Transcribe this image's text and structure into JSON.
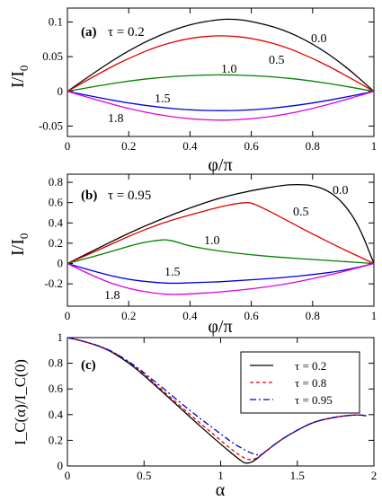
{
  "chart_data": [
    {
      "type": "line",
      "panel_label": "(a)",
      "tau_text": "τ = 0.2",
      "ylabel_main": "I/I",
      "ylabel_sub": "0",
      "xlabel": "φ/π",
      "xlim": [
        0,
        1
      ],
      "ylim": [
        -0.065,
        0.12
      ],
      "xticks": [
        0,
        0.2,
        0.4,
        0.6,
        0.8,
        1
      ],
      "xtick_labels": [
        "0",
        "0.2",
        "0.4",
        "0.6",
        "0.8",
        "1"
      ],
      "yticks": [
        -0.05,
        0,
        0.05,
        0.1
      ],
      "ytick_labels": [
        "-0.05",
        "0",
        "0.05",
        "0.1"
      ],
      "series": [
        {
          "label": "0.0",
          "color": "#000000",
          "x": [
            0,
            0.1,
            0.2,
            0.3,
            0.4,
            0.5,
            0.55,
            0.6,
            0.7,
            0.8,
            0.9,
            1
          ],
          "y": [
            0,
            0.031,
            0.059,
            0.081,
            0.097,
            0.104,
            0.104,
            0.101,
            0.09,
            0.069,
            0.039,
            0
          ]
        },
        {
          "label": "0.5",
          "color": "#e00000",
          "x": [
            0,
            0.1,
            0.2,
            0.3,
            0.4,
            0.5,
            0.6,
            0.7,
            0.8,
            0.9,
            1
          ],
          "y": [
            0,
            0.025,
            0.048,
            0.066,
            0.077,
            0.081,
            0.077,
            0.066,
            0.048,
            0.025,
            0
          ]
        },
        {
          "label": "1.0",
          "color": "#008000",
          "x": [
            0,
            0.1,
            0.2,
            0.3,
            0.4,
            0.5,
            0.6,
            0.7,
            0.8,
            0.9,
            1
          ],
          "y": [
            0,
            0.008,
            0.015,
            0.02,
            0.023,
            0.024,
            0.023,
            0.02,
            0.015,
            0.008,
            0
          ]
        },
        {
          "label": "1.5",
          "color": "#0000e0",
          "x": [
            0,
            0.1,
            0.2,
            0.3,
            0.4,
            0.5,
            0.6,
            0.7,
            0.8,
            0.9,
            1
          ],
          "y": [
            0,
            -0.009,
            -0.017,
            -0.023,
            -0.027,
            -0.028,
            -0.027,
            -0.023,
            -0.017,
            -0.009,
            0
          ]
        },
        {
          "label": "1.8",
          "color": "#e000e0",
          "x": [
            0,
            0.1,
            0.2,
            0.3,
            0.4,
            0.5,
            0.6,
            0.7,
            0.8,
            0.9,
            1
          ],
          "y": [
            0,
            -0.013,
            -0.025,
            -0.034,
            -0.04,
            -0.042,
            -0.04,
            -0.034,
            -0.025,
            -0.013,
            0
          ]
        }
      ]
    },
    {
      "type": "line",
      "panel_label": "(b)",
      "tau_text": "τ = 0.95",
      "ylabel_main": "I/I",
      "ylabel_sub": "0",
      "xlabel": "φ/π",
      "xlim": [
        0,
        1
      ],
      "ylim": [
        -0.42,
        0.88
      ],
      "xticks": [
        0,
        0.2,
        0.4,
        0.6,
        0.8,
        1
      ],
      "xtick_labels": [
        "0",
        "0.2",
        "0.4",
        "0.6",
        "0.8",
        "1"
      ],
      "yticks": [
        -0.2,
        0,
        0.2,
        0.4,
        0.6,
        0.8
      ],
      "ytick_labels": [
        "-0.2",
        "0",
        "0.2",
        "0.4",
        "0.6",
        "0.8"
      ],
      "series": [
        {
          "label": "0.0",
          "color": "#000000",
          "x": [
            0,
            0.1,
            0.2,
            0.3,
            0.4,
            0.5,
            0.6,
            0.7,
            0.75,
            0.8,
            0.85,
            0.9,
            0.95,
            1
          ],
          "y": [
            0,
            0.15,
            0.3,
            0.43,
            0.55,
            0.65,
            0.72,
            0.77,
            0.78,
            0.77,
            0.72,
            0.6,
            0.38,
            0
          ]
        },
        {
          "label": "0.5",
          "color": "#e00000",
          "x": [
            0,
            0.1,
            0.2,
            0.3,
            0.4,
            0.5,
            0.55,
            0.58,
            0.6,
            0.65,
            0.7,
            0.8,
            0.9,
            1
          ],
          "y": [
            0,
            0.13,
            0.27,
            0.39,
            0.48,
            0.56,
            0.59,
            0.6,
            0.6,
            0.53,
            0.45,
            0.29,
            0.14,
            0
          ]
        },
        {
          "label": "1.0",
          "color": "#008000",
          "x": [
            0,
            0.1,
            0.2,
            0.25,
            0.3,
            0.32,
            0.35,
            0.4,
            0.5,
            0.6,
            0.7,
            0.8,
            0.9,
            1
          ],
          "y": [
            0,
            0.08,
            0.17,
            0.21,
            0.23,
            0.235,
            0.22,
            0.17,
            0.12,
            0.085,
            0.06,
            0.04,
            0.02,
            0
          ]
        },
        {
          "label": "1.5",
          "color": "#0000e0",
          "x": [
            0,
            0.1,
            0.2,
            0.3,
            0.35,
            0.4,
            0.5,
            0.6,
            0.7,
            0.8,
            0.9,
            1
          ],
          "y": [
            0,
            -0.09,
            -0.16,
            -0.19,
            -0.195,
            -0.19,
            -0.18,
            -0.16,
            -0.14,
            -0.11,
            -0.07,
            0
          ]
        },
        {
          "label": "1.8",
          "color": "#e000e0",
          "x": [
            0,
            0.1,
            0.2,
            0.3,
            0.35,
            0.4,
            0.5,
            0.6,
            0.7,
            0.8,
            0.9,
            1
          ],
          "y": [
            0,
            -0.15,
            -0.25,
            -0.3,
            -0.305,
            -0.3,
            -0.28,
            -0.25,
            -0.21,
            -0.15,
            -0.08,
            0
          ]
        }
      ]
    },
    {
      "type": "line",
      "panel_label": "(c)",
      "ylabel_text": "I_C(α)/I_C(0)",
      "xlabel": "α",
      "xlim": [
        0,
        2
      ],
      "ylim": [
        0,
        1
      ],
      "xticks": [
        0,
        0.5,
        1,
        1.5,
        2
      ],
      "xtick_labels": [
        "0",
        "0.5",
        "1",
        "1.5",
        "2"
      ],
      "yticks": [
        0,
        0.2,
        0.4,
        0.6,
        0.8,
        1
      ],
      "ytick_labels": [
        "0",
        "0.2",
        "0.4",
        "0.6",
        "0.8",
        "1"
      ],
      "legend_position": "top-right",
      "series": [
        {
          "name": "τ = 0.2",
          "color": "#000000",
          "dash": "",
          "x": [
            0,
            0.2,
            0.4,
            0.6,
            0.8,
            1.0,
            1.1,
            1.18,
            1.3,
            1.4,
            1.5,
            1.6,
            1.7,
            1.8,
            1.9,
            1.95
          ],
          "y": [
            1,
            0.95,
            0.81,
            0.6,
            0.38,
            0.17,
            0.07,
            0.0,
            0.12,
            0.21,
            0.28,
            0.34,
            0.37,
            0.39,
            0.4,
            0.39
          ]
        },
        {
          "name": "τ = 0.8",
          "color": "#e00000",
          "dash": "4,3",
          "x": [
            0,
            0.2,
            0.4,
            0.6,
            0.8,
            1.0,
            1.1,
            1.2,
            1.3,
            1.4,
            1.5,
            1.6,
            1.7,
            1.8,
            1.9,
            1.95
          ],
          "y": [
            1,
            0.95,
            0.82,
            0.61,
            0.4,
            0.2,
            0.1,
            0.03,
            0.12,
            0.21,
            0.28,
            0.34,
            0.37,
            0.39,
            0.4,
            0.39
          ]
        },
        {
          "name": "τ = 0.95",
          "color": "#0000e0",
          "dash": "7,3,2,3",
          "x": [
            0,
            0.2,
            0.4,
            0.6,
            0.8,
            1.0,
            1.1,
            1.25,
            1.3,
            1.4,
            1.5,
            1.6,
            1.7,
            1.8,
            1.9,
            1.95
          ],
          "y": [
            1,
            0.95,
            0.82,
            0.63,
            0.43,
            0.25,
            0.16,
            0.07,
            0.12,
            0.21,
            0.28,
            0.34,
            0.37,
            0.39,
            0.4,
            0.39
          ]
        }
      ]
    }
  ]
}
